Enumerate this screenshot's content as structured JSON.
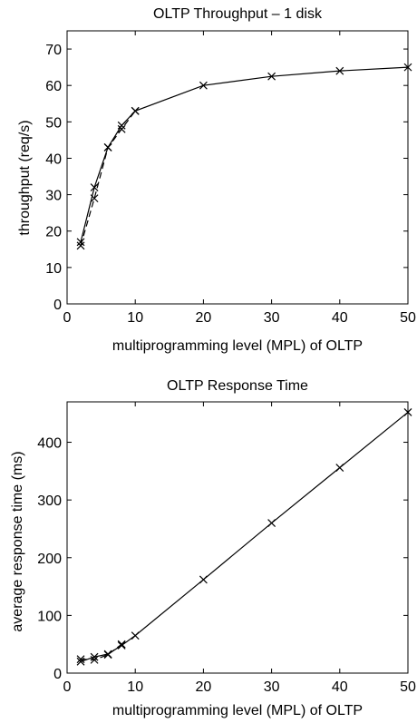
{
  "chart_data": [
    {
      "type": "line",
      "title": "OLTP Throughput – 1 disk",
      "xlabel": "multiprogramming level (MPL) of OLTP",
      "ylabel": "throughput (req/s)",
      "xlim": [
        0,
        50
      ],
      "ylim": [
        0,
        75
      ],
      "xticks": [
        0,
        10,
        20,
        30,
        40,
        50
      ],
      "yticks": [
        0,
        10,
        20,
        30,
        40,
        50,
        60,
        70
      ],
      "grid": false,
      "series": [
        {
          "style": "solid",
          "marker": "x",
          "x": [
            2,
            4,
            6,
            8,
            10,
            20,
            30,
            40,
            50
          ],
          "y": [
            17,
            32,
            43,
            49,
            53,
            60,
            62.5,
            64,
            65
          ]
        },
        {
          "style": "dashed",
          "marker": "x",
          "x": [
            2,
            4,
            6,
            8,
            10
          ],
          "y": [
            16,
            29,
            43,
            48,
            53
          ]
        }
      ]
    },
    {
      "type": "line",
      "title": "OLTP Response Time",
      "xlabel": "multiprogramming level (MPL) of OLTP",
      "ylabel": "average response time (ms)",
      "xlim": [
        0,
        50
      ],
      "ylim": [
        0,
        470
      ],
      "xticks": [
        0,
        10,
        20,
        30,
        40,
        50
      ],
      "yticks": [
        0,
        100,
        200,
        300,
        400
      ],
      "grid": false,
      "series": [
        {
          "style": "solid",
          "marker": "x",
          "x": [
            2,
            4,
            6,
            8,
            10,
            20,
            30,
            40,
            50
          ],
          "y": [
            20,
            28,
            33,
            48,
            65,
            162,
            260,
            356,
            452
          ]
        },
        {
          "style": "dashed",
          "marker": "x",
          "x": [
            2,
            4,
            6,
            8
          ],
          "y": [
            24,
            23,
            32,
            50
          ]
        }
      ]
    }
  ]
}
